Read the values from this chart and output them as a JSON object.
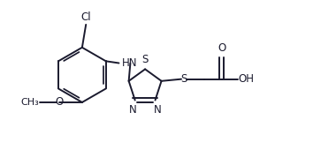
{
  "bg_color": "#ffffff",
  "line_color": "#1a1a2e",
  "line_width": 1.4,
  "font_size": 8.5,
  "figsize": [
    3.8,
    1.87
  ],
  "dpi": 100,
  "xlim": [
    0.0,
    7.6
  ],
  "ylim": [
    -0.5,
    3.8
  ]
}
